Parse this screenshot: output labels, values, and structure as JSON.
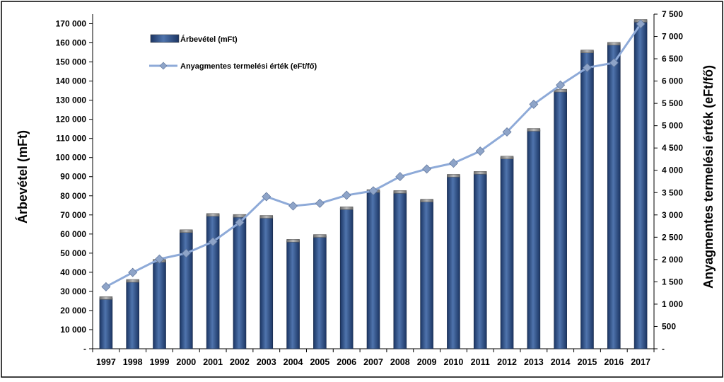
{
  "chart_data": {
    "type": "bar",
    "categories": [
      "1997",
      "1998",
      "1999",
      "2000",
      "2001",
      "2002",
      "2003",
      "2004",
      "2005",
      "2006",
      "2007",
      "2008",
      "2009",
      "2010",
      "2011",
      "2012",
      "2013",
      "2014",
      "2015",
      "2016",
      "2017"
    ],
    "series": [
      {
        "name": "Árbevétel (mFt)",
        "type": "bar",
        "axis": "left",
        "color": "#2f4f80",
        "values": [
          26500,
          35500,
          46000,
          61500,
          70000,
          69500,
          69000,
          56500,
          59000,
          73500,
          82500,
          82000,
          77500,
          90500,
          92000,
          100000,
          114500,
          135000,
          155500,
          159500,
          171500
        ]
      },
      {
        "name": "Anyagmentes termelési érték (eFt/fő)",
        "type": "line",
        "axis": "right",
        "color": "#8eaad8",
        "values": [
          1390,
          1710,
          2010,
          2140,
          2400,
          2830,
          3410,
          3200,
          3260,
          3440,
          3540,
          3860,
          4030,
          4160,
          4430,
          4860,
          5480,
          5910,
          6300,
          6410,
          7280
        ]
      }
    ],
    "left_axis": {
      "label": "Árbevétel (mFt)",
      "min": 0,
      "max": 175000,
      "step": 10000,
      "tick_labels": [
        "-",
        "10 000",
        "20 000",
        "30 000",
        "40 000",
        "50 000",
        "60 000",
        "70 000",
        "80 000",
        "90 000",
        "100 000",
        "110 000",
        "120 000",
        "130 000",
        "140 000",
        "150 000",
        "160 000",
        "170 000"
      ]
    },
    "right_axis": {
      "label": "Anyagmentes termelési érték (eFt/fő)",
      "min": 0,
      "max": 7500,
      "step": 500,
      "tick_labels": [
        "-",
        "500",
        "1 000",
        "1 500",
        "2 000",
        "2 500",
        "3 000",
        "3 500",
        "4 000",
        "4 500",
        "5 000",
        "5 500",
        "6 000",
        "6 500",
        "7 000",
        "7 500"
      ]
    },
    "legend": {
      "placement": "top-left",
      "bar_label": "Árbevétel (mFt)",
      "line_label": "Anyagmentes termelési érték (eFt/fő)"
    },
    "grid": false
  }
}
